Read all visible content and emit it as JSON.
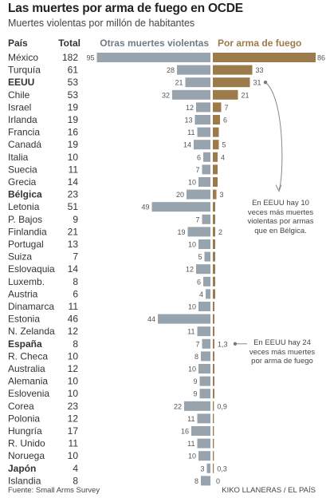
{
  "title": "Las muertes por arma de fuego en OCDE",
  "subtitle": "Muertes violentas por millón de habitantes",
  "footer": {
    "source": "Fuente: Small Arms Survey",
    "credit": "KIKO LLANERAS / EL PAÍS"
  },
  "notes": {
    "eeuu": "En EEUU hay 10 veces más muertes violentas por armas que en Bélgica.",
    "espana": "En EEUU hay 24 veces más muertes por arma de fuego"
  },
  "colors": {
    "other": "#97a3ad",
    "firearm": "#9c7a4a",
    "text": "#333333"
  },
  "chart_data": {
    "type": "bar",
    "headers": {
      "country": "País",
      "total": "Total",
      "other": "Otras muertes violentas",
      "firearm": "Por arma de fuego"
    },
    "categories": [
      "México",
      "Turquía",
      "EEUU",
      "Chile",
      "Israel",
      "Irlanda",
      "Francia",
      "Canadá",
      "Italia",
      "Suecia",
      "Grecia",
      "Bélgica",
      "Letonia",
      "P. Bajos",
      "Finlandia",
      "Portugal",
      "Suiza",
      "Eslovaquia",
      "Luxemb.",
      "Austria",
      "Dinamarca",
      "Estonia",
      "N. Zelanda",
      "España",
      "R. Checa",
      "Australia",
      "Alemania",
      "Eslovenia",
      "Corea",
      "Polonia",
      "Hungría",
      "R. Unido",
      "Noruega",
      "Japón",
      "Islandia"
    ],
    "bold": [
      "EEUU",
      "Bélgica",
      "España",
      "Japón"
    ],
    "totals": [
      "182",
      "61",
      "53",
      "53",
      "19",
      "19",
      "16",
      "19",
      "10",
      "11",
      "14",
      "23",
      "51",
      "9",
      "21",
      "13",
      "7",
      "14",
      "8",
      "6",
      "11",
      "46",
      "12",
      "8",
      "10",
      "12",
      "10",
      "10",
      "23",
      "12",
      "17",
      "11",
      "10",
      "4",
      "8"
    ],
    "series": [
      {
        "name": "Otras muertes violentas",
        "values": [
          95,
          28,
          21,
          32,
          12,
          13,
          11,
          14,
          6,
          7,
          10,
          20,
          49,
          7,
          19,
          10,
          5,
          12,
          6,
          4,
          10,
          44,
          11,
          7,
          8,
          10,
          9,
          9,
          22,
          11,
          16,
          11,
          10,
          3,
          8
        ]
      },
      {
        "name": "Por arma de fuego",
        "values": [
          86,
          33,
          31,
          21,
          7,
          6,
          5,
          5,
          4,
          4,
          4,
          3,
          2,
          2,
          2,
          2,
          2,
          2,
          2,
          2,
          1.3,
          1.3,
          1.3,
          1.3,
          1.3,
          1.3,
          1.3,
          1.3,
          0.9,
          0.9,
          0.9,
          0.9,
          0.9,
          0.3,
          0
        ],
        "labels": [
          "86",
          "33",
          "31",
          "21",
          "7",
          "6",
          "",
          "5",
          "4",
          "",
          "",
          "3",
          "",
          "",
          "2",
          "",
          "",
          "",
          "",
          "",
          "",
          "",
          "",
          "1,3",
          "",
          "",
          "",
          "",
          "0,9",
          "",
          "",
          "",
          "",
          "0,3",
          "0"
        ]
      }
    ]
  }
}
